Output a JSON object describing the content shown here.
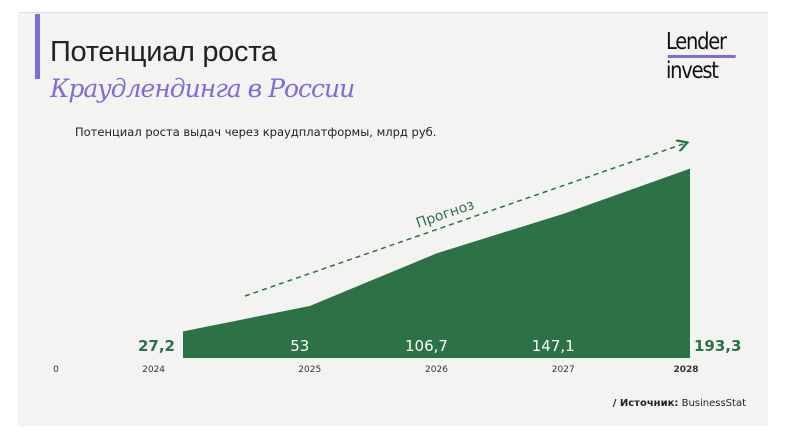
{
  "header": {
    "title": "Потенциал роста",
    "subtitle": "Краудлендинга в России"
  },
  "logo": {
    "line1": "Lender",
    "line2": "invest"
  },
  "source": {
    "label": "/ Источник:",
    "value": "BusinessStat"
  },
  "colors": {
    "accent": "#7a6fd6",
    "area": "#2d7146",
    "background": "#f3f3f1"
  },
  "chart_data": {
    "type": "area",
    "title": "Потенциал роста выдач через краудплатформы, млрд руб.",
    "categories": [
      "2024",
      "2025",
      "2026",
      "2027",
      "2028"
    ],
    "values": [
      27.2,
      53,
      106.7,
      147.1,
      193.3
    ],
    "value_labels": [
      "27,2",
      "53",
      "106,7",
      "147,1",
      "193,3"
    ],
    "y_tick_label": "0",
    "ylim": [
      0,
      200
    ],
    "annotation": "Прогноз",
    "grid": false
  }
}
